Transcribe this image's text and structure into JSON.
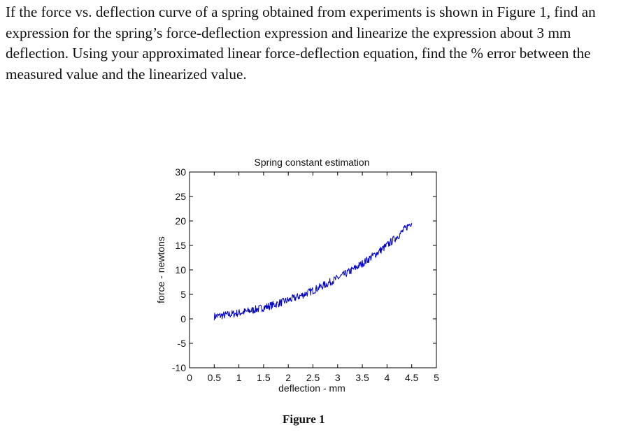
{
  "problem": {
    "text": "If the force vs. deflection curve of a spring obtained from experiments is shown in Figure 1, find an expression for the spring’s force-deflection expression and linearize the expression about 3 mm deflection.  Using your approximated linear force-deflection equation, find the % error between the measured value and the linearized value."
  },
  "figure": {
    "caption": "Figure 1"
  },
  "chart_data": {
    "type": "line",
    "title": "Spring constant estimation",
    "xlabel": "deflection - mm",
    "ylabel": "force - newtons",
    "xlim": [
      0,
      5
    ],
    "ylim": [
      -10,
      30
    ],
    "xticks": [
      0,
      0.5,
      1,
      1.5,
      2,
      2.5,
      3,
      3.5,
      4,
      4.5,
      5
    ],
    "xtick_labels": [
      "0",
      "0.5",
      "1",
      "1.5",
      "2",
      "2.5",
      "3",
      "3.5",
      "4",
      "4.5",
      "5"
    ],
    "yticks": [
      -10,
      -5,
      0,
      5,
      10,
      15,
      20,
      25,
      30
    ],
    "ytick_labels": [
      "-10",
      "-5",
      "0",
      "5",
      "10",
      "15",
      "20",
      "25",
      "30"
    ],
    "grid": false,
    "line_color": "#0000cc",
    "series": [
      {
        "x": [
          0.5,
          0.75,
          1.0,
          1.25,
          1.5,
          1.75,
          2.0,
          2.25,
          2.5,
          2.75,
          3.0,
          3.25,
          3.5,
          3.75,
          4.0,
          4.25,
          4.5
        ],
        "y": [
          0.5,
          0.8,
          1.2,
          1.7,
          2.3,
          3.0,
          3.8,
          4.7,
          5.8,
          7.0,
          8.3,
          9.7,
          11.3,
          13.1,
          15.0,
          17.2,
          19.8
        ]
      }
    ]
  }
}
